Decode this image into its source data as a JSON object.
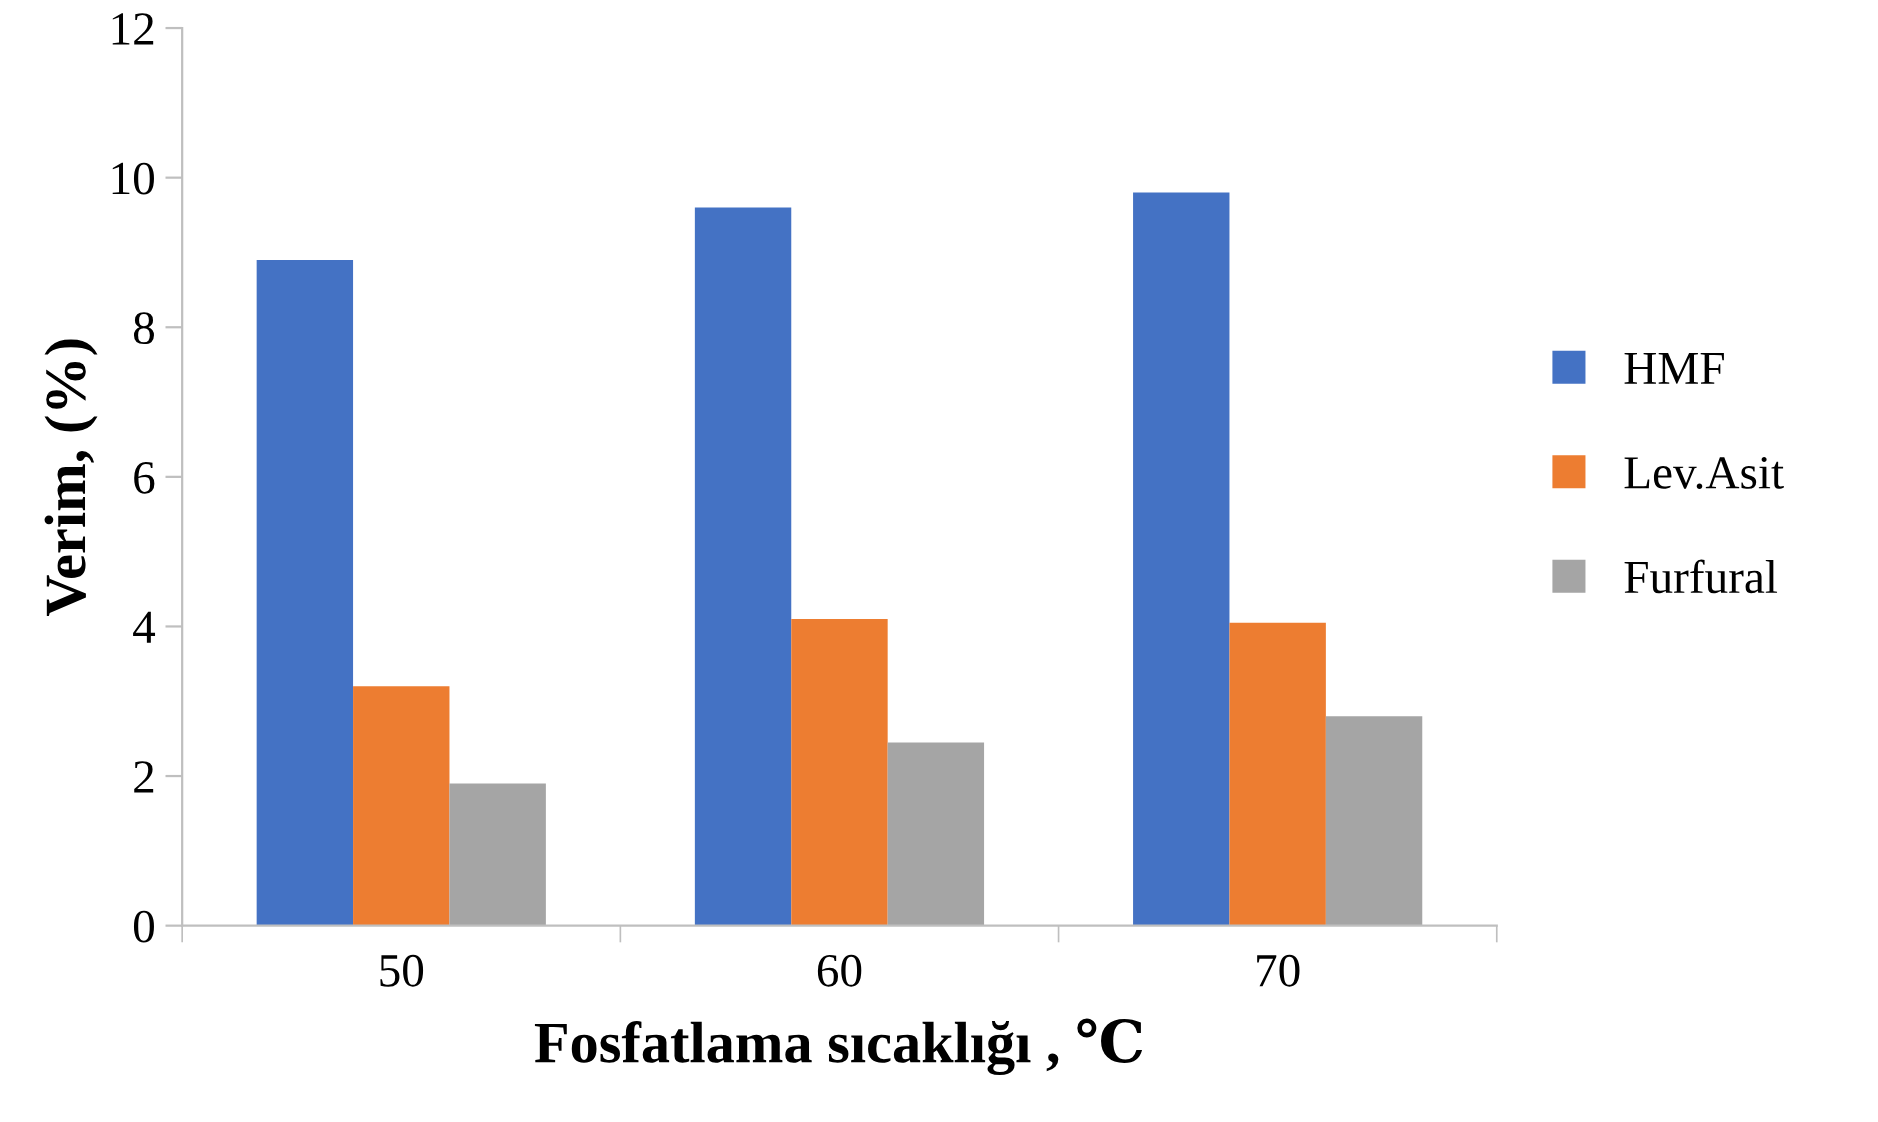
{
  "chart_data": {
    "type": "bar",
    "xlabel": "Fosfatlama sıcaklığı , ℃",
    "ylabel": "Verim, (%)",
    "categories": [
      "50",
      "60",
      "70"
    ],
    "series": [
      {
        "name": "HMF",
        "color": "#4472c4",
        "values": [
          8.9,
          9.6,
          9.8
        ]
      },
      {
        "name": "Lev.Asit",
        "color": "#ed7d31",
        "values": [
          3.2,
          4.1,
          4.05
        ]
      },
      {
        "name": "Furfural",
        "color": "#a5a5a5",
        "values": [
          1.9,
          2.45,
          2.8
        ]
      }
    ],
    "ylim": [
      0,
      12
    ],
    "yticks": [
      0,
      2,
      4,
      6,
      8,
      10,
      12
    ],
    "grid": false,
    "legend": "right"
  }
}
